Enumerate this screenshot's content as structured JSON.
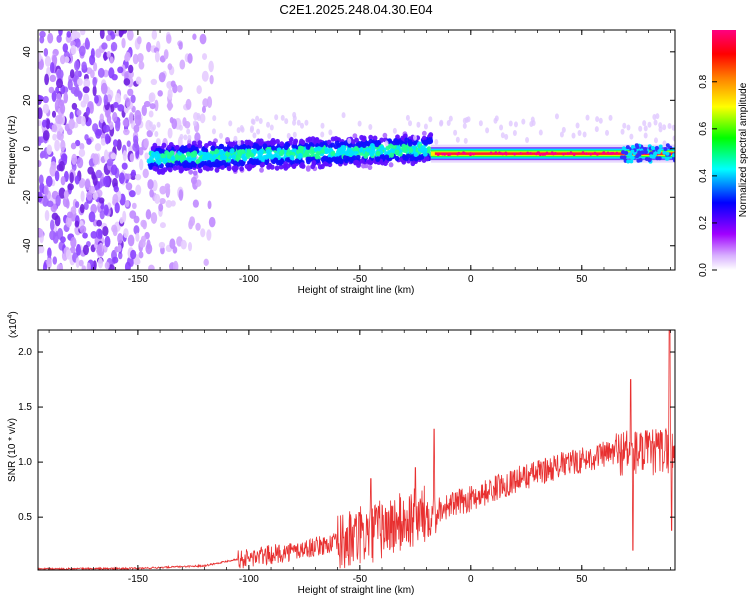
{
  "title": "C2E1.2025.248.04.30.E04",
  "chart_data": [
    {
      "type": "heatmap",
      "xlabel": "Height of straight line (km)",
      "ylabel": "Frequency (Hz)",
      "xlim": [
        -195,
        92
      ],
      "ylim": [
        -50,
        49
      ],
      "xticks": [
        -150,
        -100,
        -50,
        0,
        50
      ],
      "yticks": [
        -40,
        -20,
        0,
        20,
        40
      ],
      "colorbar": {
        "label": "Normalized spectral amplitude",
        "range": [
          0,
          1
        ],
        "ticks": [
          "0.0",
          "0.2",
          "0.4",
          "0.6",
          "0.8"
        ],
        "colors": [
          "#ffffff",
          "#a000ff",
          "#0000ff",
          "#00ffff",
          "#00ff00",
          "#ffff00",
          "#ff8000",
          "#ff0000",
          "#ff0080"
        ]
      },
      "trace": {
        "noise_region_km": [
          -195,
          -115
        ],
        "signal_start_km": -145,
        "tone_start_km": -18,
        "center_freq_hz": -2
      }
    },
    {
      "type": "line",
      "xlabel": "Height of straight line (km)",
      "ylabel": "SNR (10 * v/v)",
      "scale_label": "(x10",
      "scale_exp": "4",
      "scale_close": ")",
      "xlim": [
        -195,
        92
      ],
      "ylim": [
        0.02,
        2.2
      ],
      "xticks": [
        -150,
        -100,
        -50,
        0,
        50
      ],
      "yticks": [
        0.5,
        1.0,
        1.5,
        2.0
      ],
      "ytick_labels": [
        "0.5",
        "1.0",
        "1.5",
        "2.0"
      ],
      "color": "#e83030",
      "trend": {
        "x": [
          -195,
          -150,
          -120,
          -105,
          -80,
          -60,
          -40,
          -20,
          0,
          20,
          40,
          60,
          70,
          80,
          92
        ],
        "y": [
          0.03,
          0.035,
          0.06,
          0.12,
          0.2,
          0.28,
          0.42,
          0.55,
          0.68,
          0.85,
          0.98,
          1.08,
          1.12,
          1.1,
          1.15
        ]
      },
      "spikes": [
        {
          "x": -16.5,
          "y": 1.3
        },
        {
          "x": -25,
          "y": 0.95
        },
        {
          "x": -45,
          "y": 0.85
        },
        {
          "x": 72,
          "y": 1.75
        },
        {
          "x": 73,
          "y": 0.2
        },
        {
          "x": 89.5,
          "y": 2.2
        },
        {
          "x": 90.5,
          "y": 0.38
        }
      ]
    }
  ]
}
